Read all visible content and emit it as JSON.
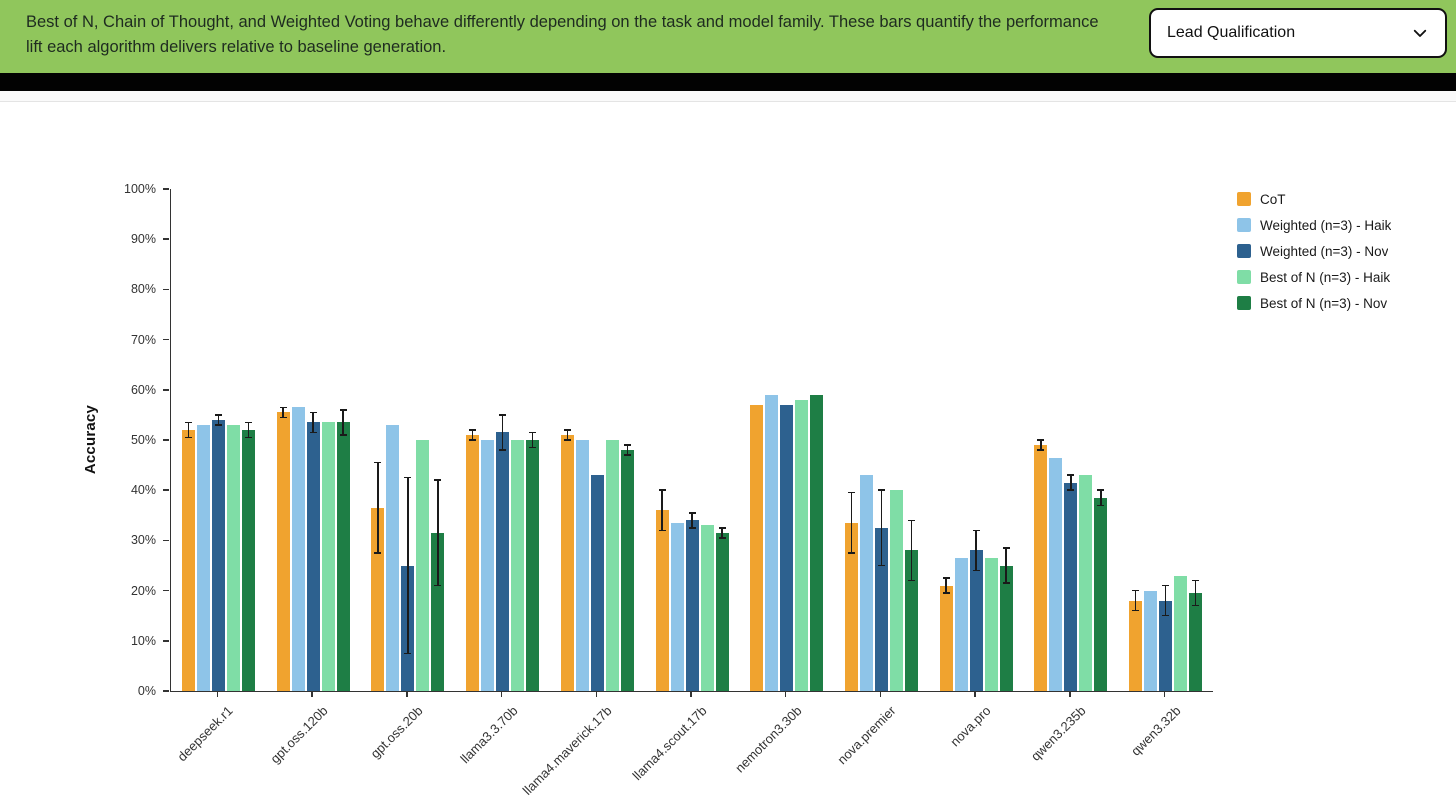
{
  "banner": {
    "text": "Best of N, Chain of Thought, and Weighted Voting behave differently depending on the task and model family. These bars quantify the performance lift each algorithm delivers relative to baseline generation.",
    "dropdown_value": "Lead Qualification",
    "background": "#90C65C",
    "text_color": "#1E2B20"
  },
  "chart_data": {
    "type": "bar",
    "title": "",
    "xlabel": "",
    "ylabel": "Accuracy",
    "ylim": [
      0,
      100
    ],
    "ytick_step": 10,
    "ytick_format": "percent",
    "grid": false,
    "legend_position": "top-right",
    "categories": [
      "deepseek.r1",
      "gpt.oss.120b",
      "gpt.oss.20b",
      "llama3.3.70b",
      "llama4.maverick.17b",
      "llama4.scout.17b",
      "nemotron3.30b",
      "nova.premier",
      "nova.pro",
      "qwen3.235b",
      "qwen3.32b"
    ],
    "series": [
      {
        "name": "CoT",
        "color": "#F0A32F",
        "values": [
          52,
          55.5,
          36.5,
          51,
          51,
          36,
          57,
          33.5,
          21,
          49,
          18
        ],
        "errors": [
          1.5,
          1,
          9,
          1,
          1,
          4,
          0,
          6,
          1.5,
          1,
          2
        ]
      },
      {
        "name": "Weighted (n=3) - Haik",
        "color": "#8EC4E8",
        "values": [
          53,
          56.5,
          53,
          50,
          50,
          33.5,
          59,
          43,
          26.5,
          46.5,
          20
        ],
        "errors": [
          0,
          0,
          0,
          0,
          0,
          0,
          0,
          0,
          0,
          0,
          0
        ]
      },
      {
        "name": "Weighted (n=3) - Nov",
        "color": "#2D618F",
        "values": [
          54,
          53.5,
          25,
          51.5,
          43,
          34,
          57,
          32.5,
          28,
          41.5,
          18
        ],
        "errors": [
          1,
          2,
          17.5,
          3.5,
          0,
          1.5,
          0,
          7.5,
          4,
          1.5,
          3
        ]
      },
      {
        "name": "Best of N (n=3) - Haik",
        "color": "#7FDDA6",
        "values": [
          53,
          53.5,
          50,
          50,
          50,
          33,
          58,
          40,
          26.5,
          43,
          23
        ],
        "errors": [
          0,
          0,
          0,
          0,
          0,
          0,
          0,
          0,
          0,
          0,
          0
        ]
      },
      {
        "name": "Best of N (n=3) - Nov",
        "color": "#1E7E45",
        "values": [
          52,
          53.5,
          31.5,
          50,
          48,
          31.5,
          59,
          28,
          25,
          38.5,
          19.5
        ],
        "errors": [
          1.5,
          2.5,
          10.5,
          1.5,
          1,
          1,
          0,
          6,
          3.5,
          1.5,
          2.5
        ]
      }
    ]
  }
}
